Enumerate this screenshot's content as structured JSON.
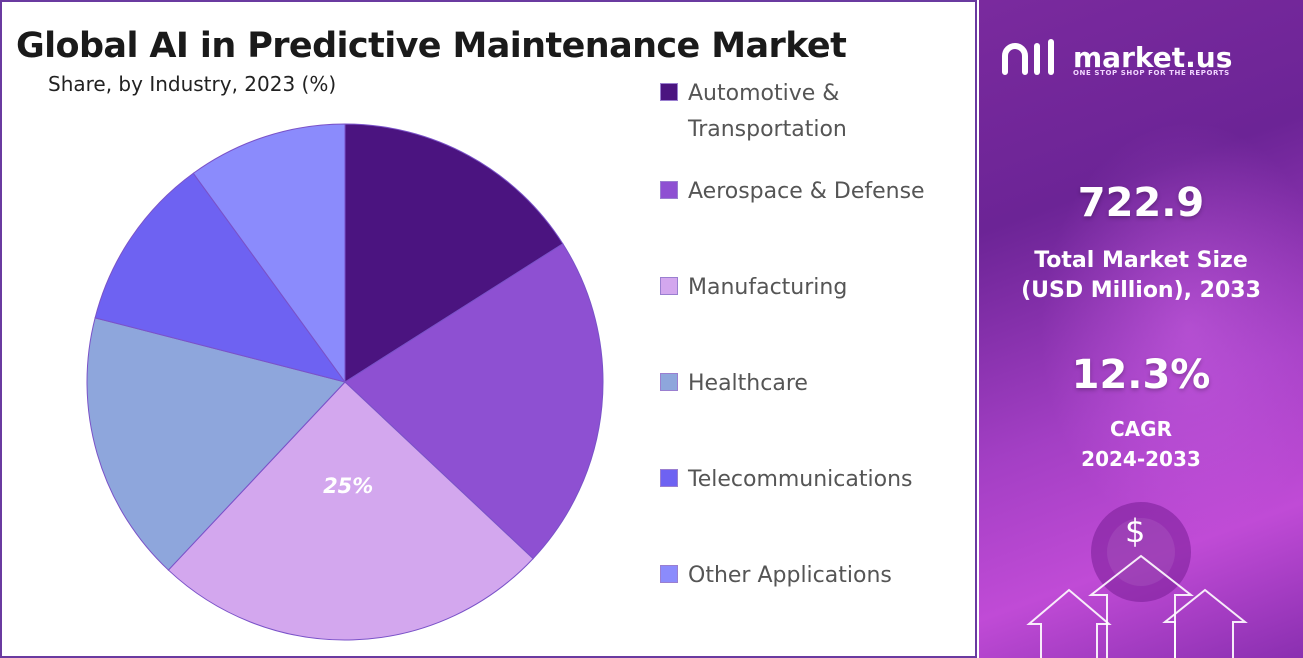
{
  "title": "Global AI in Predictive Maintenance Market",
  "subtitle": "Share, by Industry, 2023 (%)",
  "chart_data": {
    "type": "pie",
    "title": "Global AI in Predictive Maintenance Market",
    "subtitle": "Share, by Industry, 2023 (%)",
    "slices": [
      {
        "label": "Automotive & Transportation",
        "value": 16,
        "color": "#4b1480"
      },
      {
        "label": "Aerospace & Defense",
        "value": 21,
        "color": "#8e50d2"
      },
      {
        "label": "Manufacturing",
        "value": 25,
        "color": "#d3a7ee"
      },
      {
        "label": "Healthcare",
        "value": 17,
        "color": "#8ea6dc"
      },
      {
        "label": "Telecommunications",
        "value": 11,
        "color": "#6e62f2"
      },
      {
        "label": "Other Applications",
        "value": 10,
        "color": "#8b8bfc"
      }
    ],
    "data_labels": [
      {
        "slice": "Manufacturing",
        "text": "25%"
      }
    ],
    "start_angle_deg": 0,
    "direction": "clockwise",
    "legend_position": "right"
  },
  "panel": {
    "brand_name": "market.us",
    "brand_tagline": "ONE STOP SHOP FOR THE REPORTS",
    "market_size_value": "722.9",
    "market_size_label_line1": "Total Market Size",
    "market_size_label_line2": "(USD Million), 2033",
    "cagr_value": "12.3%",
    "cagr_label_line1": "CAGR",
    "cagr_label_line2": "2024-2033",
    "currency_symbol": "$"
  }
}
